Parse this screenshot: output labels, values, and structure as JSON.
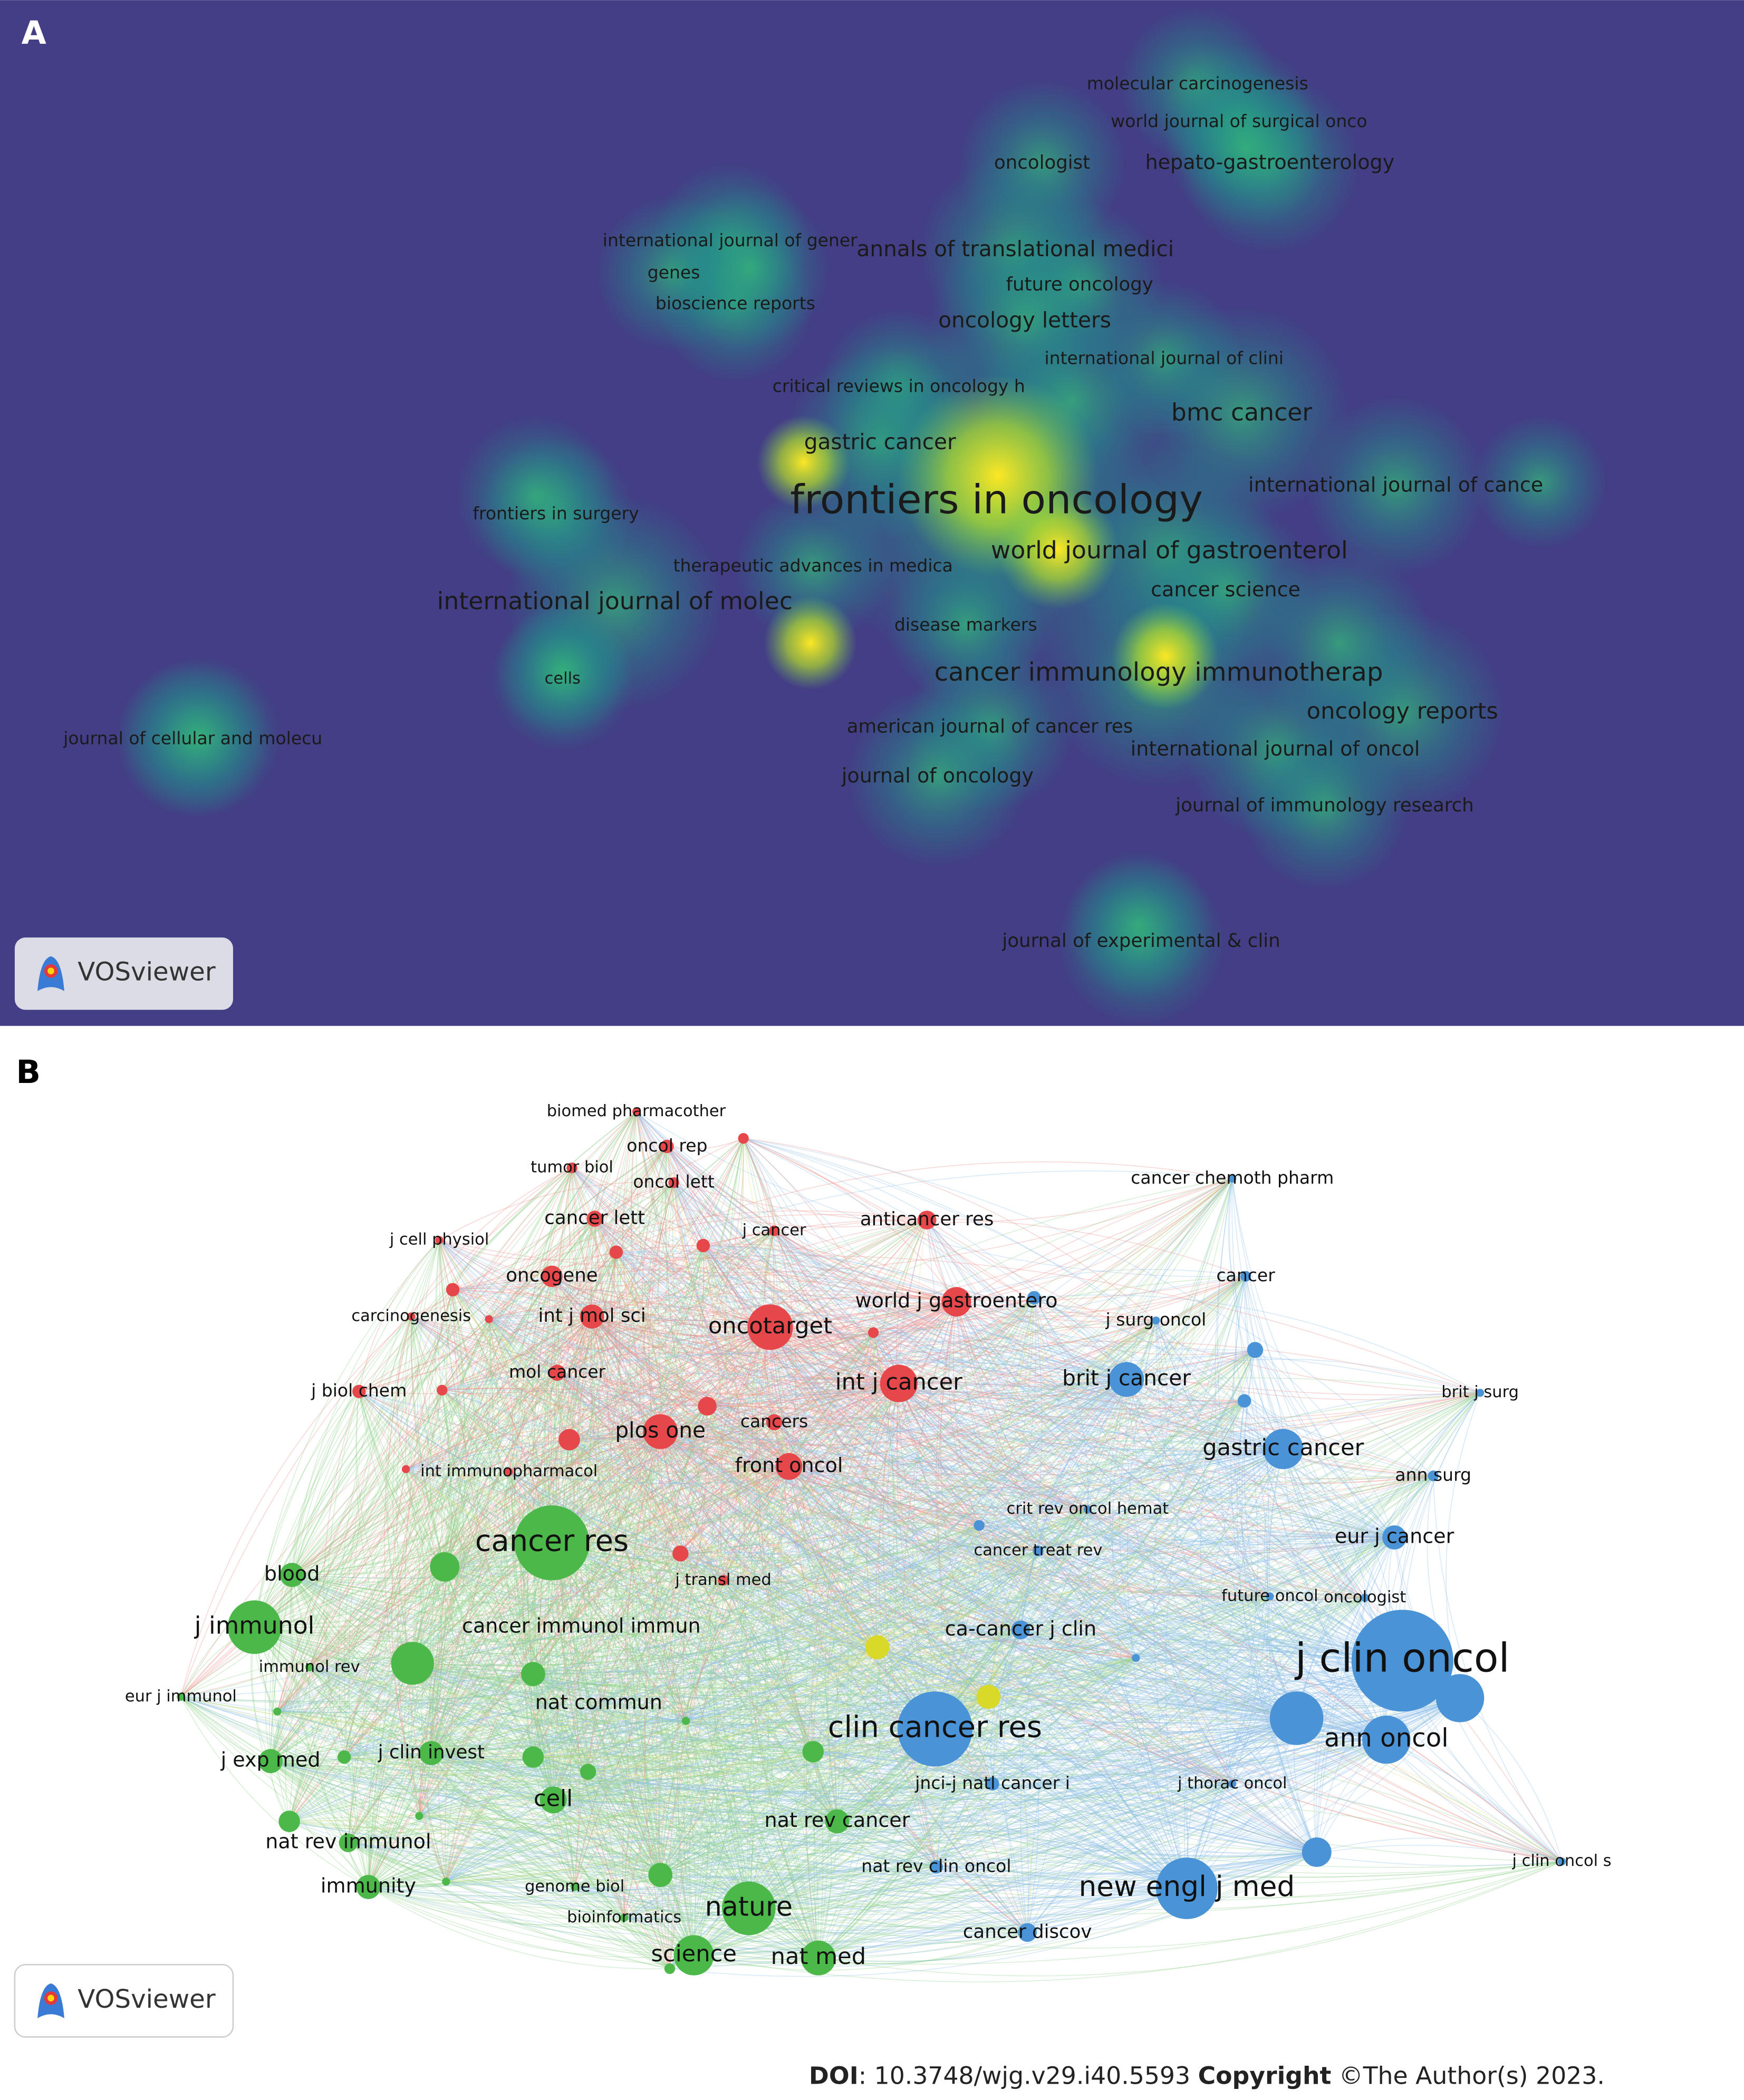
{
  "panel_a": {
    "label": "A",
    "logo": "VOSviewer",
    "terms": [
      "molecular carcinogenesis",
      "world journal of surgical onco",
      "oncologist",
      "hepato-gastroenterology",
      "international journal of gener",
      "annals of translational medici",
      "genes",
      "future oncology",
      "bioscience reports",
      "oncology letters",
      "international journal of clini",
      "critical reviews in oncology h",
      "bmc cancer",
      "gastric cancer",
      "frontiers in oncology",
      "international journal of cance",
      "frontiers in surgery",
      "world journal of gastroenterol",
      "therapeutic advances in medica",
      "cancer science",
      "international journal of molec",
      "disease markers",
      "cancer immunology immunotherap",
      "cells",
      "oncology reports",
      "american journal of cancer res",
      "international journal of oncol",
      "journal of cellular and molecu",
      "journal of oncology",
      "journal of immunology research",
      "journal of experimental & clin"
    ]
  },
  "panel_b": {
    "label": "B",
    "logo": "VOSviewer",
    "terms": [
      "biomed pharmacother",
      "oncol rep",
      "tumor biol",
      "oncol lett",
      "cancer lett",
      "j cancer",
      "anticancer res",
      "j cell physiol",
      "oncogene",
      "world j gastroentero",
      "carcinogenesis",
      "int j mol sci",
      "oncotarget",
      "mol cancer",
      "int j cancer",
      "j biol chem",
      "cancers",
      "plos one",
      "front oncol",
      "int immunopharmacol",
      "j transl med",
      "cancer res",
      "blood",
      "j immunol",
      "cancer immunol immun",
      "immunol rev",
      "eur j immunol",
      "nat commun",
      "j exp med",
      "j clin invest",
      "cell",
      "nat rev cancer",
      "nat rev immunol",
      "immunity",
      "genome biol",
      "nature",
      "bioinformatics",
      "science",
      "nat med",
      "cancer chemoth pharm",
      "cancer",
      "j surg oncol",
      "brit j surg",
      "brit j cancer",
      "gastric cancer",
      "ann surg",
      "crit rev oncol hemat",
      "eur j cancer",
      "cancer treat rev",
      "future oncol",
      "oncologist",
      "ca-cancer j clin",
      "j clin oncol",
      "clin cancer res",
      "ann oncol",
      "jnci-j natl cancer i",
      "j thorac oncol",
      "j clin oncol s",
      "nat rev clin oncol",
      "new engl j med",
      "cancer discov"
    ]
  },
  "footer": {
    "doi_label": "DOI",
    "doi": ": 10.3748/wjg.v29.i40.5593 ",
    "copyright_label": "Copyright",
    "copyright": " ©The Author(s) 2023."
  }
}
